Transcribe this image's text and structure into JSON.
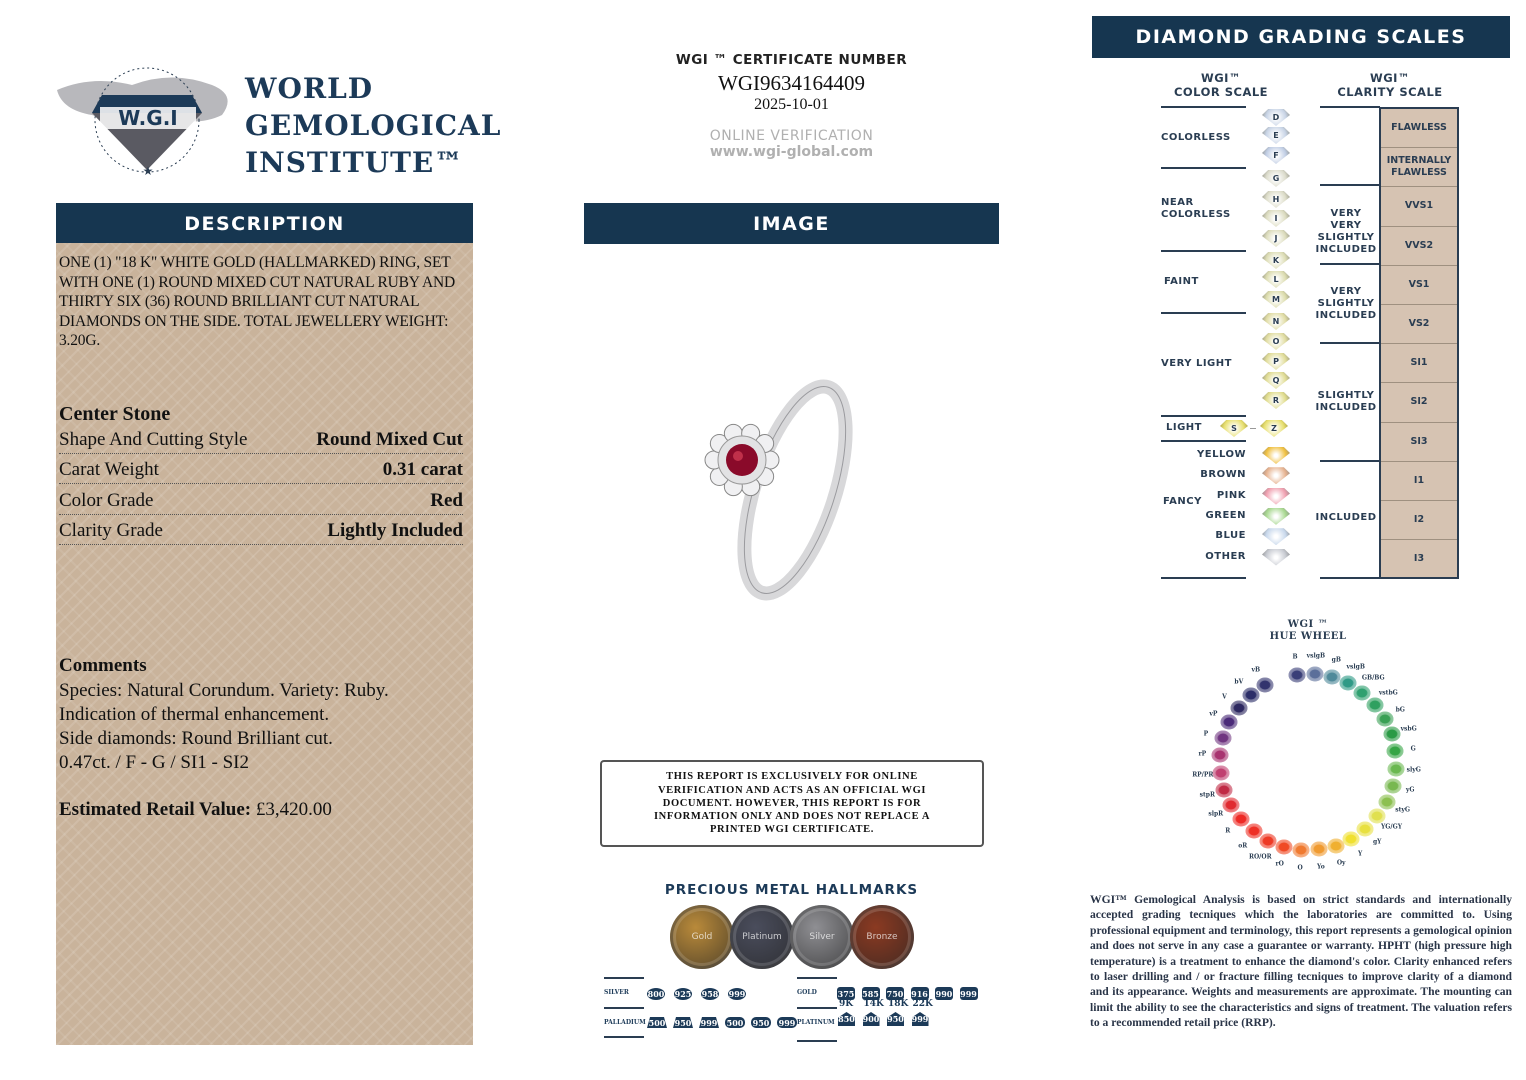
{
  "logo": {
    "emblem_text": "W.G.I",
    "ring_text": "WORLD GEMOLOGICAL INSTITUTE",
    "line1": "WORLD",
    "line2": "GEMOLOGICAL",
    "line3": "INSTITUTE™"
  },
  "description": {
    "header": "DESCRIPTION",
    "text": "ONE (1) \"18 K\" WHITE GOLD (HALLMARKED) RING, SET WITH ONE (1) ROUND MIXED CUT NATURAL RUBY AND THIRTY SIX (36) ROUND BRILLIANT CUT NATURAL DIAMONDS ON THE SIDE. TOTAL JEWELLERY WEIGHT: 3.20g.",
    "center_stone_title": "Center Stone",
    "rows": [
      {
        "label": "Shape And Cutting Style",
        "value": "Round Mixed Cut"
      },
      {
        "label": "Carat Weight",
        "value": "0.31 carat"
      },
      {
        "label": "Color Grade",
        "value": "Red"
      },
      {
        "label": "Clarity Grade",
        "value": "Lightly Included"
      }
    ],
    "comments_title": "Comments",
    "comments": [
      "Species: Natural Corundum. Variety: Ruby.",
      "Indication of thermal enhancement.",
      "Side diamonds: Round Brilliant cut.",
      "0.47ct. / F - G / SI1 - SI2"
    ],
    "retail_label": "Estimated Retail Value:",
    "retail_value": "£3,420.00"
  },
  "certificate": {
    "label": "WGI ™ CERTIFICATE NUMBER",
    "number": "WGI9634164409",
    "date": "2025-10-01",
    "verification_label": "ONLINE VERIFICATION",
    "url": "www.wgi-global.com"
  },
  "image_section": {
    "header": "IMAGE"
  },
  "disclaimer": "THIS REPORT IS EXCLUSIVELY FOR ONLINE VERIFICATION AND ACTS AS AN OFFICIAL WGI DOCUMENT. HOWEVER, THIS REPORT IS FOR INFORMATION ONLY AND DOES NOT REPLACE A PRINTED WGI CERTIFICATE.",
  "hallmarks": {
    "title": "PRECIOUS METAL HALLMARKS",
    "coins": [
      {
        "label": "Gold",
        "color": "#b98a3a"
      },
      {
        "label": "Platinum",
        "color": "#4a4d5c"
      },
      {
        "label": "Silver",
        "color": "#8f8f93"
      },
      {
        "label": "Bronze",
        "color": "#8b3a22"
      }
    ],
    "silver": {
      "label": "SILVER",
      "marks": [
        "800",
        "925",
        "958",
        "999"
      ]
    },
    "palladium": {
      "label": "PALLADIUM",
      "marks": [
        "500",
        "950",
        "999",
        "500",
        "950",
        "999"
      ]
    },
    "gold": {
      "label": "GOLD",
      "marks": [
        "375",
        "585",
        "750",
        "916",
        "990",
        "999"
      ],
      "karats": [
        "9K",
        "14K",
        "18K",
        "22K"
      ]
    },
    "platinum": {
      "label": "PLATINUM",
      "marks": [
        "850",
        "900",
        "950",
        "999"
      ]
    }
  },
  "scales": {
    "header": "DIAMOND GRADING  SCALES",
    "color_title": [
      "WGI™",
      "COLOR SCALE"
    ],
    "clarity_title": [
      "WGI™",
      "CLARITY SCALE"
    ],
    "color_groups": [
      "COLORLESS",
      "NEAR COLORLESS",
      "FAINT",
      "VERY LIGHT",
      "LIGHT",
      "FANCY"
    ],
    "color_grades": [
      "D",
      "E",
      "F",
      "G",
      "H",
      "I",
      "J",
      "K",
      "L",
      "M",
      "N",
      "O",
      "P",
      "Q",
      "R",
      "S",
      "Z"
    ],
    "fancy_colors": [
      {
        "name": "YELLOW",
        "color": "#f0c040"
      },
      {
        "name": "BROWN",
        "color": "#e6b28f"
      },
      {
        "name": "PINK",
        "color": "#f0a0b0"
      },
      {
        "name": "GREEN",
        "color": "#a8d890"
      },
      {
        "name": "BLUE",
        "color": "#c8d8ec"
      },
      {
        "name": "OTHER",
        "color": "#c8cbd2"
      }
    ],
    "clarity_groups": [
      "VERY VERY SLIGHTLY INCLUDED",
      "VERY SLIGHTLY INCLUDED",
      "SLIGHTLY INCLUDED",
      "INCLUDED"
    ],
    "clarity_grades": [
      "FLAWLESS",
      "INTERNALLY FLAWLESS",
      "VVS1",
      "VVS2",
      "VS1",
      "VS2",
      "SI1",
      "SI2",
      "SI3",
      "I1",
      "I2",
      "I3"
    ]
  },
  "hue_wheel": {
    "title": [
      "WGI ™",
      "HUE WHEEL"
    ],
    "hues": [
      {
        "code": "B",
        "color": "#3a3f78"
      },
      {
        "code": "vslgB",
        "color": "#5b6f9a"
      },
      {
        "code": "gB",
        "color": "#4f8a9a"
      },
      {
        "code": "vslgB",
        "color": "#2f9a86"
      },
      {
        "code": "GB/BG",
        "color": "#2fa070"
      },
      {
        "code": "vstbG",
        "color": "#2fa060"
      },
      {
        "code": "bG",
        "color": "#3aa055"
      },
      {
        "code": "vsbG",
        "color": "#2a9a45"
      },
      {
        "code": "G",
        "color": "#35a545"
      },
      {
        "code": "slyG",
        "color": "#6ab850"
      },
      {
        "code": "yG",
        "color": "#78b850"
      },
      {
        "code": "styG",
        "color": "#8cc050"
      },
      {
        "code": "YG/GY",
        "color": "#e0e050"
      },
      {
        "code": "gY",
        "color": "#e8e040"
      },
      {
        "code": "Y",
        "color": "#f0e030"
      },
      {
        "code": "Oy",
        "color": "#f0b030"
      },
      {
        "code": "Yo",
        "color": "#f09a30"
      },
      {
        "code": "O",
        "color": "#f07a30"
      },
      {
        "code": "rO",
        "color": "#f04a25"
      },
      {
        "code": "RO/OR",
        "color": "#ee3a25"
      },
      {
        "code": "oR",
        "color": "#ee3025"
      },
      {
        "code": "R",
        "color": "#ee2a25"
      },
      {
        "code": "slpR",
        "color": "#e02a30"
      },
      {
        "code": "stpR",
        "color": "#c02a45"
      },
      {
        "code": "RP/PR",
        "color": "#c04070"
      },
      {
        "code": "rP",
        "color": "#a83470"
      },
      {
        "code": "P",
        "color": "#703580"
      },
      {
        "code": "vP",
        "color": "#4a2a78"
      },
      {
        "code": "V",
        "color": "#2d2860"
      },
      {
        "code": "bV",
        "color": "#2c2e68"
      },
      {
        "code": "vB",
        "color": "#33346e"
      }
    ]
  },
  "analysis_text": "WGI™ Gemological Analysis is based on strict standards and internationally accepted grading tecniques which the laboratories are committed to. Using professional equipment and terminology, this report represents a gemological opinion and does not serve in any case a guarantee or warranty. HPHT (high pressure high temperature) is a treatment to enhance the diamond's color. Clarity enhanced refers to laser drilling and / or fracture filling tecniques to improve clarity of a diamond and its appearance. Weights and measurements are approximate. The mounting can limit the ability to see the characteristics and signs of treatment. The valuation refers to a recommended retail price (RRP)."
}
